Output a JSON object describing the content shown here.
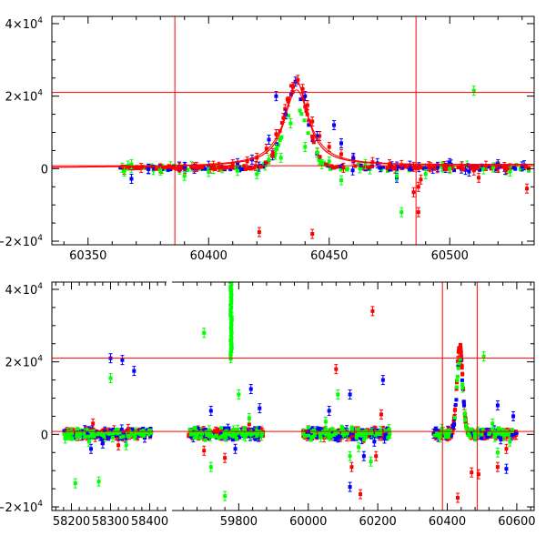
{
  "colors": {
    "red": "#ff0000",
    "blue": "#0000ff",
    "green": "#00ff00",
    "axis": "#000000"
  },
  "chart_data": [
    {
      "id": "top",
      "type": "scatter",
      "title": "",
      "xlabel": "",
      "ylabel": "",
      "xlim": [
        60335,
        60535
      ],
      "ylim": [
        -21000,
        42000
      ],
      "xticks": [
        60350,
        60400,
        60450,
        60500
      ],
      "xtick_labels": [
        "60350",
        "60400",
        "60450",
        "60500"
      ],
      "yticks": [
        -20000,
        0,
        20000,
        40000
      ],
      "ytick_labels": [
        {
          "mant": "−2×10",
          "exp": "4"
        },
        {
          "mant": "0",
          "exp": ""
        },
        {
          "mant": "2×10",
          "exp": "4"
        },
        {
          "mant": "4×10",
          "exp": "4"
        }
      ],
      "vlines": [
        60386,
        60486
      ],
      "hlines": [
        21000,
        800
      ],
      "series": [
        {
          "color": "red",
          "model": true,
          "points": [
            [
              60365,
              -300
            ],
            [
              60372,
              200
            ],
            [
              60380,
              100
            ],
            [
              60388,
              300
            ],
            [
              60395,
              500
            ],
            [
              60402,
              800
            ],
            [
              60410,
              1200
            ],
            [
              60416,
              2000
            ],
            [
              60420,
              3000
            ],
            [
              60424,
              5500
            ],
            [
              60428,
              9500
            ],
            [
              60431,
              14000
            ],
            [
              60433,
              18500
            ],
            [
              60435,
              22500
            ],
            [
              60437,
              24500
            ],
            [
              60439,
              22000
            ],
            [
              60441,
              17500
            ],
            [
              60443,
              13000
            ],
            [
              60446,
              9000
            ],
            [
              60450,
              6000
            ],
            [
              60455,
              4000
            ],
            [
              60460,
              2600
            ],
            [
              60468,
              1800
            ],
            [
              60475,
              1200
            ],
            [
              60480,
              1000
            ],
            [
              60485,
              500
            ],
            [
              60487,
              -5000
            ],
            [
              60487,
              -12000
            ],
            [
              60488,
              -3000
            ],
            [
              60492,
              400
            ],
            [
              60500,
              300
            ],
            [
              60505,
              600
            ],
            [
              60510,
              -500
            ],
            [
              60512,
              -2500
            ],
            [
              60515,
              800
            ],
            [
              60520,
              200
            ],
            [
              60525,
              100
            ],
            [
              60532,
              -5500
            ],
            [
              60421,
              -17500
            ],
            [
              60443,
              -18000
            ],
            [
              60485,
              -6500
            ]
          ]
        },
        {
          "color": "blue",
          "points": [
            [
              60368,
              -2800
            ],
            [
              60375,
              0
            ],
            [
              60390,
              500
            ],
            [
              60400,
              800
            ],
            [
              60412,
              1500
            ],
            [
              60418,
              2500
            ],
            [
              60425,
              8000
            ],
            [
              60428,
              20000
            ],
            [
              60432,
              15000
            ],
            [
              60436,
              24000
            ],
            [
              60440,
              20000
            ],
            [
              60445,
              9000
            ],
            [
              60452,
              12000
            ],
            [
              60455,
              7000
            ],
            [
              60460,
              3000
            ],
            [
              60470,
              1500
            ],
            [
              60478,
              -2500
            ],
            [
              60490,
              0
            ],
            [
              60495,
              500
            ],
            [
              60500,
              1500
            ],
            [
              60508,
              -800
            ],
            [
              60520,
              1200
            ],
            [
              60530,
              600
            ]
          ]
        },
        {
          "color": "green",
          "points": [
            [
              60365,
              -800
            ],
            [
              60368,
              1200
            ],
            [
              60380,
              -500
            ],
            [
              60390,
              -2000
            ],
            [
              60400,
              -900
            ],
            [
              60412,
              -600
            ],
            [
              60420,
              -1500
            ],
            [
              60425,
              2500
            ],
            [
              60428,
              5500
            ],
            [
              60430,
              3000
            ],
            [
              60434,
              12500
            ],
            [
              60440,
              6000
            ],
            [
              60445,
              4500
            ],
            [
              60450,
              2000
            ],
            [
              60455,
              -3200
            ],
            [
              60465,
              1200
            ],
            [
              60478,
              -2000
            ],
            [
              60480,
              -12000
            ],
            [
              60490,
              -1500
            ],
            [
              60500,
              0
            ],
            [
              60510,
              21500
            ],
            [
              60518,
              300
            ],
            [
              60525,
              -800
            ]
          ]
        }
      ]
    },
    {
      "id": "bottom",
      "type": "scatter",
      "title": "",
      "xlabel": "",
      "ylabel": "",
      "ylim": [
        -21000,
        42000
      ],
      "segments": [
        {
          "xlim": [
            58150,
            58450
          ],
          "xticks": [
            58200,
            58300,
            58400
          ],
          "xtick_labels": [
            "58200",
            "58300",
            "58400"
          ]
        },
        {
          "xlim": [
            59600,
            60650
          ],
          "xticks": [
            59800,
            60000,
            60200,
            60400,
            60600
          ],
          "xtick_labels": [
            "59800",
            "60000",
            "60200",
            "60400",
            "60600"
          ]
        }
      ],
      "yticks": [
        -20000,
        0,
        20000,
        40000
      ],
      "ytick_labels": [
        {
          "mant": "−2×10",
          "exp": "4"
        },
        {
          "mant": "0",
          "exp": ""
        },
        {
          "mant": "2×10",
          "exp": "4"
        },
        {
          "mant": "4×10",
          "exp": "4"
        }
      ],
      "vlines": [
        60386,
        60486
      ],
      "hlines": [
        21000,
        800
      ],
      "clusters": [
        {
          "x_range": [
            58180,
            58405
          ],
          "colors": [
            "red",
            "blue",
            "green"
          ],
          "spread": 1500
        },
        {
          "x_range": [
            59655,
            59870
          ],
          "colors": [
            "red",
            "blue",
            "green"
          ],
          "spread": 1500
        },
        {
          "x_range": [
            59985,
            60235
          ],
          "colors": [
            "red",
            "blue",
            "green"
          ],
          "spread": 1800
        },
        {
          "x_range": [
            60360,
            60600
          ],
          "colors": [
            "red",
            "blue",
            "green"
          ],
          "spread": 1200
        }
      ],
      "peak": {
        "x": 60436,
        "y": 24500,
        "width": 12
      },
      "series": [
        {
          "color": "red",
          "points": [
            [
              58255,
              3000
            ],
            [
              58320,
              -3000
            ],
            [
              58345,
              1500
            ],
            [
              59700,
              -4500
            ],
            [
              59760,
              -6500
            ],
            [
              59830,
              2800
            ],
            [
              60080,
              18000
            ],
            [
              60125,
              -9000
            ],
            [
              60150,
              -16500
            ],
            [
              60185,
              34000
            ],
            [
              60195,
              -6000
            ],
            [
              60210,
              5500
            ],
            [
              60430,
              -17500
            ],
            [
              60470,
              -10500
            ],
            [
              60490,
              -11000
            ],
            [
              60545,
              -9000
            ],
            [
              60570,
              -4000
            ]
          ]
        },
        {
          "color": "blue",
          "points": [
            [
              58300,
              21000
            ],
            [
              58330,
              20500
            ],
            [
              58360,
              17500
            ],
            [
              58250,
              -4000
            ],
            [
              58280,
              -2500
            ],
            [
              59720,
              6500
            ],
            [
              59790,
              -4000
            ],
            [
              59835,
              12500
            ],
            [
              59860,
              7200
            ],
            [
              60060,
              6500
            ],
            [
              60120,
              11000
            ],
            [
              60160,
              -6000
            ],
            [
              60215,
              15000
            ],
            [
              60190,
              -2000
            ],
            [
              60545,
              8000
            ],
            [
              60570,
              -9500
            ],
            [
              60590,
              5000
            ],
            [
              60120,
              -14500
            ]
          ]
        },
        {
          "color": "green",
          "points": [
            [
              58210,
              -13500
            ],
            [
              58245,
              -2000
            ],
            [
              58270,
              -13000
            ],
            [
              58300,
              15500
            ],
            [
              58340,
              -3000
            ],
            [
              59700,
              28000
            ],
            [
              59720,
              -9000
            ],
            [
              59760,
              -17000
            ],
            [
              59800,
              11000
            ],
            [
              59830,
              4500
            ],
            [
              60050,
              3500
            ],
            [
              60085,
              11000
            ],
            [
              60120,
              -6000
            ],
            [
              60145,
              -3500
            ],
            [
              60180,
              -7500
            ],
            [
              60505,
              21500
            ],
            [
              60530,
              3000
            ],
            [
              60545,
              -5000
            ],
            [
              60580,
              -2000
            ]
          ]
        },
        {
          "color": "green",
          "column": true,
          "x": 59778,
          "y_range": [
            21000,
            42000
          ]
        }
      ]
    }
  ]
}
